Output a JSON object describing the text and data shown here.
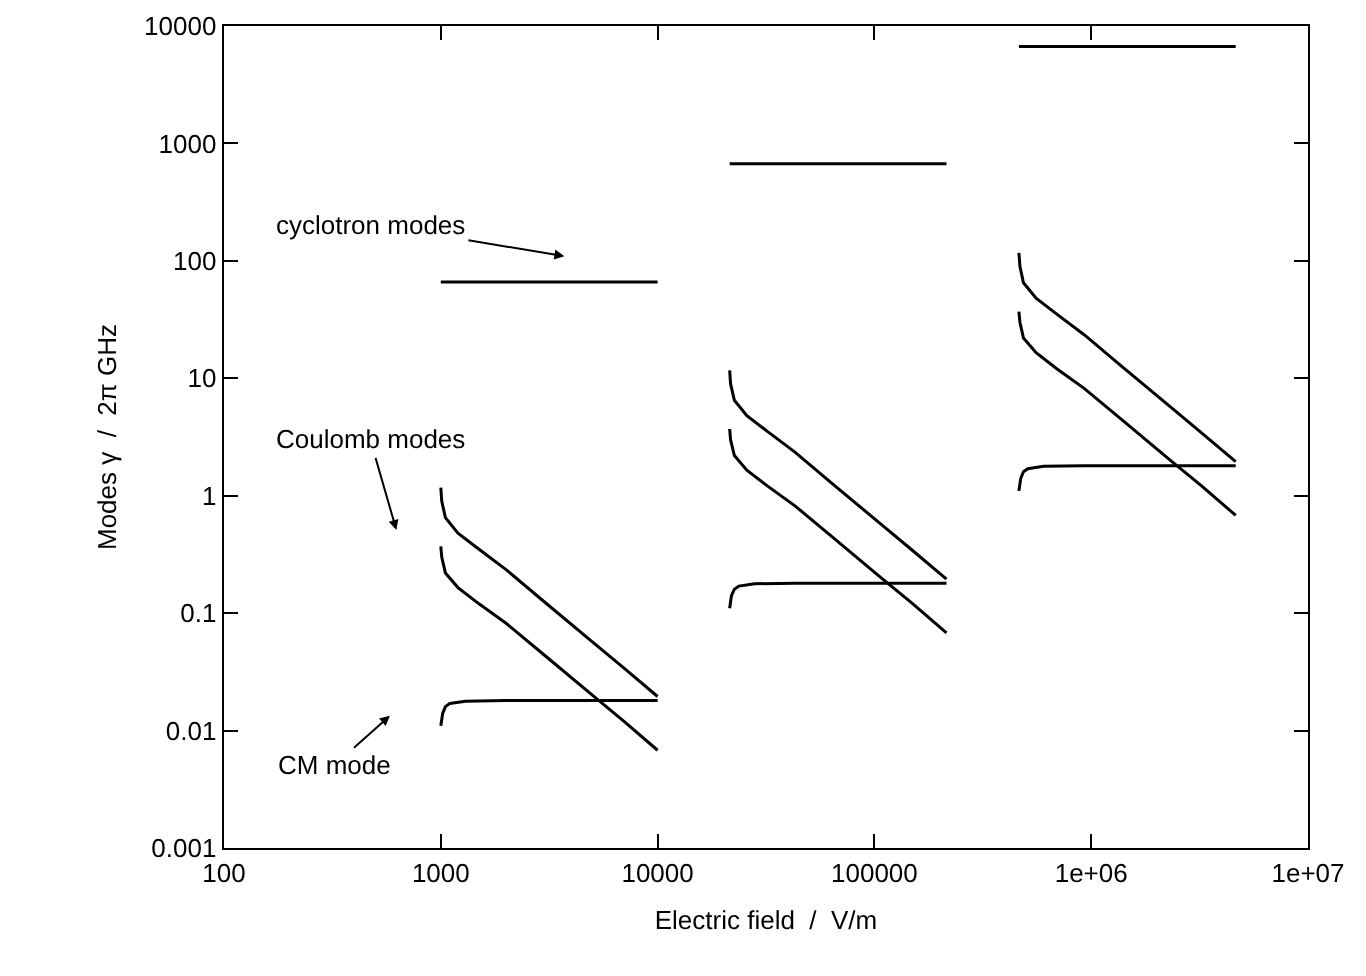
{
  "chart_data": {
    "type": "line",
    "xlabel": "Electric field  /  V/m",
    "ylabel": "Modes γ  /  2π GHz",
    "log": "xy",
    "xlim": [
      100,
      10000000
    ],
    "ylim": [
      0.001,
      10000
    ],
    "xticks": [
      100,
      1000,
      10000,
      100000,
      {
        "value": 1000000,
        "label": "1e+06"
      },
      {
        "value": 10000000,
        "label": "1e+07"
      }
    ],
    "yticks": [
      0.001,
      0.01,
      0.1,
      1,
      10,
      100,
      1000,
      10000
    ],
    "grid": false,
    "marker": "none",
    "line_style": "solid",
    "series": [
      {
        "color": "#000000",
        "x": [
          1000,
          10000
        ],
        "values": [
          66,
          66
        ]
      },
      {
        "color": "#000000",
        "x": [
          1000,
          1010,
          1050,
          1200,
          1500,
          2000,
          3000,
          5000,
          7000,
          10000
        ],
        "values": [
          1.17,
          0.9,
          0.65,
          0.48,
          0.35,
          0.235,
          0.125,
          0.057,
          0.034,
          0.0195
        ]
      },
      {
        "color": "#000000",
        "x": [
          1000,
          1010,
          1050,
          1200,
          1500,
          2000,
          3000,
          5000,
          7000,
          10000
        ],
        "values": [
          0.37,
          0.3,
          0.22,
          0.165,
          0.12,
          0.082,
          0.044,
          0.02,
          0.012,
          0.0068
        ]
      },
      {
        "color": "#000000",
        "x": [
          1000,
          1020,
          1050,
          1100,
          1300,
          2000,
          10000
        ],
        "values": [
          0.011,
          0.014,
          0.016,
          0.017,
          0.0178,
          0.018,
          0.018
        ]
      },
      {
        "color": "#000000",
        "x": [
          21500,
          215000
        ],
        "values": [
          670,
          670
        ]
      },
      {
        "color": "#000000",
        "x": [
          21500,
          21700,
          22600,
          25800,
          32300,
          43000,
          64500,
          107500,
          150500,
          215000
        ],
        "values": [
          11.7,
          9,
          6.5,
          4.8,
          3.5,
          2.35,
          1.25,
          0.57,
          0.34,
          0.195
        ]
      },
      {
        "color": "#000000",
        "x": [
          21500,
          21700,
          22600,
          25800,
          32300,
          43000,
          64500,
          107500,
          150500,
          215000
        ],
        "values": [
          3.7,
          3,
          2.2,
          1.65,
          1.2,
          0.82,
          0.44,
          0.2,
          0.12,
          0.068
        ]
      },
      {
        "color": "#000000",
        "x": [
          21500,
          21900,
          22600,
          23700,
          28000,
          43000,
          215000
        ],
        "values": [
          0.11,
          0.14,
          0.16,
          0.17,
          0.178,
          0.18,
          0.18
        ]
      },
      {
        "color": "#000000",
        "x": [
          464000,
          4640000
        ],
        "values": [
          6700,
          6700
        ]
      },
      {
        "color": "#000000",
        "x": [
          464000,
          469000,
          487000,
          557000,
          696000,
          928000,
          1392000,
          2320000,
          3248000,
          4640000
        ],
        "values": [
          117,
          90,
          65,
          48,
          35,
          23.5,
          12.5,
          5.7,
          3.4,
          1.95
        ]
      },
      {
        "color": "#000000",
        "x": [
          464000,
          469000,
          487000,
          557000,
          696000,
          928000,
          1392000,
          2320000,
          3248000,
          4640000
        ],
        "values": [
          37,
          30,
          22,
          16.5,
          12,
          8.2,
          4.4,
          2,
          1.2,
          0.68
        ]
      },
      {
        "color": "#000000",
        "x": [
          464000,
          473000,
          487000,
          510000,
          603000,
          928000,
          4640000
        ],
        "values": [
          1.1,
          1.4,
          1.6,
          1.7,
          1.78,
          1.8,
          1.8
        ]
      }
    ],
    "annotations": [
      "cyclotron modes",
      "Coulomb modes",
      "CM mode"
    ]
  }
}
